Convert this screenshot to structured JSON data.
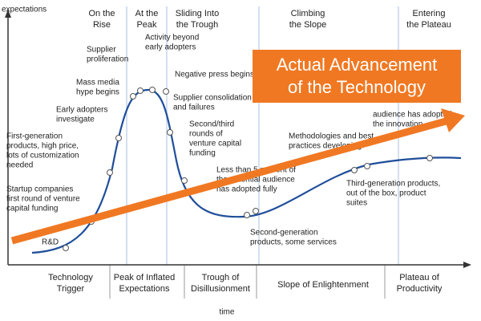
{
  "axes": {
    "y_label": "expectations",
    "x_label": "time"
  },
  "phases_top": [
    [
      "On the",
      "Rise"
    ],
    [
      "At the",
      "Peak"
    ],
    [
      "Sliding Into",
      "the Trough"
    ],
    [
      "Climbing",
      "the Slope"
    ],
    [
      "Entering",
      "the Plateau"
    ]
  ],
  "phases_bottom": [
    [
      "Technology",
      "Trigger"
    ],
    [
      "Peak of Inflated",
      "Expectations"
    ],
    [
      "Trough of",
      "Disillusionment"
    ],
    [
      "Slope of Enlightenment"
    ],
    [
      "Plateau of",
      "Productivity"
    ]
  ],
  "annotations": [
    [
      "R&D"
    ],
    [
      "Startup companies",
      "first round of venture",
      "capital funding"
    ],
    [
      "First-generation",
      "products, high price,",
      "lots of customization",
      "needed"
    ],
    [
      "Early adopters",
      "investigate"
    ],
    [
      "Mass media",
      "hype begins"
    ],
    [
      "Supplier",
      "proliferation"
    ],
    [
      "Activity beyond",
      "early adopters"
    ],
    [
      "Negative press begins"
    ],
    [
      "Supplier consolidation",
      "and failures"
    ],
    [
      "Second/third",
      "rounds of",
      "venture capital",
      "funding"
    ],
    [
      "Less than 5 percent of",
      "the potential audience",
      "has adopted fully"
    ],
    [
      "Second-generation",
      "products, some services"
    ],
    [
      "Methodologies and best",
      "practices developing"
    ],
    [
      "Third-generation products,",
      "out of the box, product",
      "suites"
    ],
    [
      "audience has adopted",
      "the innovation"
    ]
  ],
  "overlay": [
    "Actual Advancement",
    "of the Technology"
  ]
}
